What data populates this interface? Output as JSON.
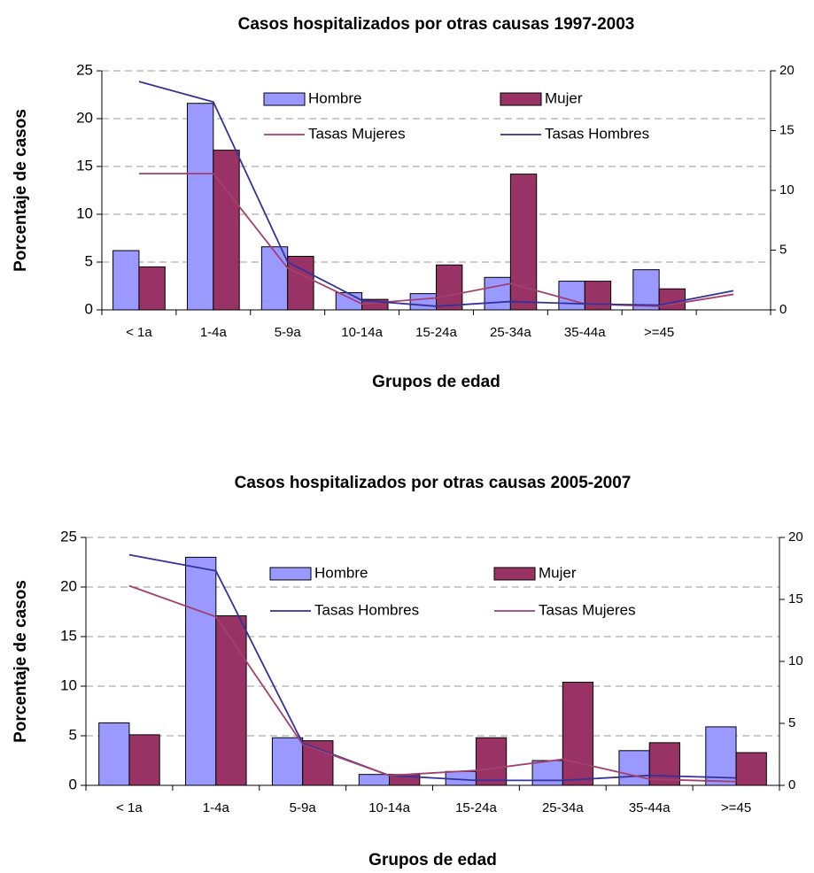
{
  "chart_data": [
    {
      "type": "bar",
      "title": "Casos hospitalizados por otras causas 1997-2003",
      "x_label": "Grupos de edad",
      "y_label": "Porcentaje de casos",
      "categories": [
        "< 1a",
        "1-4a",
        "5-9a",
        "10-14a",
        "15-24a",
        "25-34a",
        "35-44a",
        ">=45",
        null
      ],
      "series": [
        {
          "name": "Hombre",
          "type": "bar",
          "color": "#9999ff",
          "values": [
            6.2,
            21.6,
            6.6,
            1.8,
            1.7,
            3.4,
            3.0,
            4.2,
            null
          ]
        },
        {
          "name": "Mujer",
          "type": "bar",
          "color": "#993366",
          "values": [
            4.5,
            16.7,
            5.6,
            1.1,
            4.7,
            14.2,
            3.0,
            2.2,
            null
          ]
        },
        {
          "name": "Tasas Mujeres",
          "type": "line",
          "axis": "y2",
          "color": "#a3406e",
          "values": [
            11.4,
            11.4,
            3.5,
            0.5,
            1.0,
            2.2,
            0.5,
            0.3,
            1.3
          ]
        },
        {
          "name": "Tasas Hombres",
          "type": "line",
          "axis": "y2",
          "color": "#333399",
          "values": [
            19.1,
            17.4,
            4.0,
            0.8,
            0.3,
            0.7,
            0.5,
            0.4,
            1.6
          ]
        }
      ],
      "ylim": [
        0,
        25
      ],
      "yticks": [
        0,
        5,
        10,
        15,
        20,
        25
      ],
      "y2lim": [
        0,
        20
      ],
      "y2ticks": [
        0,
        5,
        10,
        15,
        20
      ],
      "grid": true
    },
    {
      "type": "bar",
      "title": "Casos hospitalizados por otras causas 2005-2007",
      "x_label": "Grupos de edad",
      "y_label": "Porcentaje de casos",
      "categories": [
        "< 1a",
        "1-4a",
        "5-9a",
        "10-14a",
        "15-24a",
        "25-34a",
        "35-44a",
        ">=45"
      ],
      "series": [
        {
          "name": "Hombre",
          "type": "bar",
          "color": "#9999ff",
          "values": [
            6.3,
            23.0,
            4.8,
            1.1,
            1.4,
            2.5,
            3.5,
            5.9
          ]
        },
        {
          "name": "Mujer",
          "type": "bar",
          "color": "#993366",
          "values": [
            5.1,
            17.1,
            4.5,
            1.1,
            4.8,
            10.4,
            4.3,
            3.3
          ]
        },
        {
          "name": "Tasas Hombres",
          "type": "line",
          "axis": "y2",
          "color": "#333399",
          "values": [
            18.6,
            17.3,
            3.4,
            0.8,
            0.4,
            0.4,
            0.8,
            0.6
          ]
        },
        {
          "name": "Tasas Mujeres",
          "type": "line",
          "axis": "y2",
          "color": "#a3406e",
          "values": [
            16.1,
            13.6,
            3.3,
            0.8,
            1.2,
            2.1,
            0.5,
            0.3
          ]
        }
      ],
      "ylim": [
        0,
        25
      ],
      "yticks": [
        0,
        5,
        10,
        15,
        20,
        25
      ],
      "y2lim": [
        0,
        20
      ],
      "y2ticks": [
        0,
        5,
        10,
        15,
        20
      ],
      "grid": true
    }
  ]
}
